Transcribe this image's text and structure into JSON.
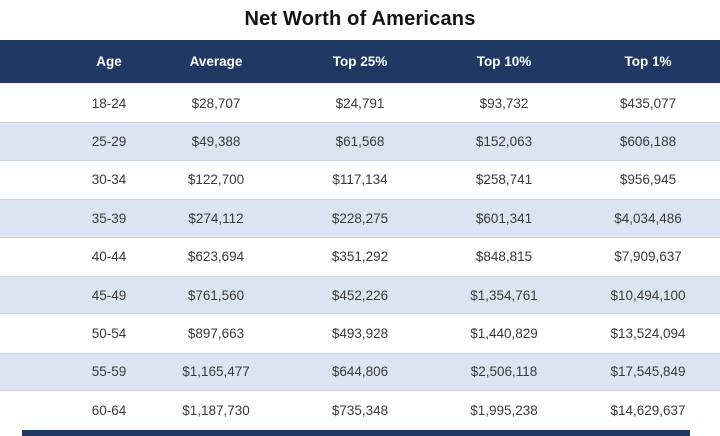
{
  "title": "Net Worth of Americans",
  "colors": {
    "header_bg": "#1F3864",
    "header_text": "#FFFFFF",
    "row_bg": "#FFFFFF",
    "row_alt_bg": "#DBE5F1",
    "row_border": "#C9D6E8",
    "cell_text": "#3A3A3A",
    "title_text": "#141414",
    "bottom_bar": "#1F3864"
  },
  "table": {
    "columns": [
      "Age",
      "Average",
      "Top 25%",
      "Top 10%",
      "Top 1%"
    ],
    "rows": [
      [
        "18-24",
        "$28,707",
        "$24,791",
        "$93,732",
        "$435,077"
      ],
      [
        "25-29",
        "$49,388",
        "$61,568",
        "$152,063",
        "$606,188"
      ],
      [
        "30-34",
        "$122,700",
        "$117,134",
        "$258,741",
        "$956,945"
      ],
      [
        "35-39",
        "$274,112",
        "$228,275",
        "$601,341",
        "$4,034,486"
      ],
      [
        "40-44",
        "$623,694",
        "$351,292",
        "$848,815",
        "$7,909,637"
      ],
      [
        "45-49",
        "$761,560",
        "$452,226",
        "$1,354,761",
        "$10,494,100"
      ],
      [
        "50-54",
        "$897,663",
        "$493,928",
        "$1,440,829",
        "$13,524,094"
      ],
      [
        "55-59",
        "$1,165,477",
        "$644,806",
        "$2,506,118",
        "$17,545,849"
      ],
      [
        "60-64",
        "$1,187,730",
        "$735,348",
        "$1,995,238",
        "$14,629,637"
      ]
    ]
  },
  "chart_data": {
    "type": "table",
    "title": "Net Worth of Americans",
    "columns": [
      "Age",
      "Average",
      "Top 25%",
      "Top 10%",
      "Top 1%"
    ],
    "categories": [
      "18-24",
      "25-29",
      "30-34",
      "35-39",
      "40-44",
      "45-49",
      "50-54",
      "55-59",
      "60-64"
    ],
    "series": [
      {
        "name": "Average",
        "values": [
          28707,
          49388,
          122700,
          274112,
          623694,
          761560,
          897663,
          1165477,
          1187730
        ]
      },
      {
        "name": "Top 25%",
        "values": [
          24791,
          61568,
          117134,
          228275,
          351292,
          452226,
          493928,
          644806,
          735348
        ]
      },
      {
        "name": "Top 10%",
        "values": [
          93732,
          152063,
          258741,
          601341,
          848815,
          1354761,
          1440829,
          2506118,
          1995238
        ]
      },
      {
        "name": "Top 1%",
        "values": [
          435077,
          606188,
          956945,
          4034486,
          7909637,
          10494100,
          13524094,
          17545849,
          14629637
        ]
      }
    ],
    "units": "USD",
    "layout": {
      "striped_rows": true,
      "header_position": "top",
      "value_format": "$#,###"
    }
  }
}
